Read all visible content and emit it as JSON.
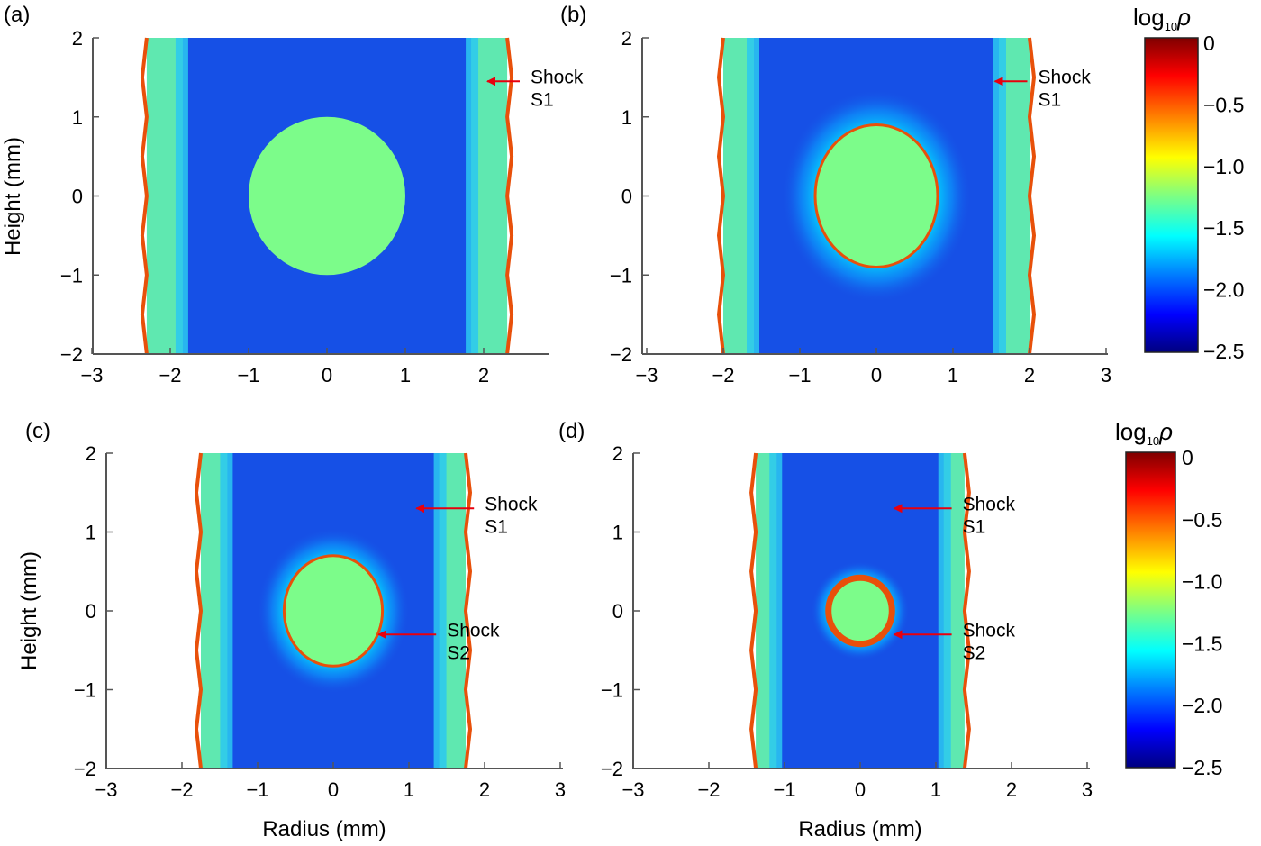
{
  "chart_data": [
    {
      "type": "heatmap",
      "panel_label": "(a)",
      "xlabel": "",
      "ylabel": "Height (mm)",
      "xlim": [
        -3,
        3
      ],
      "ylim": [
        -2,
        2
      ],
      "xticks": [
        "−3",
        "−2",
        "−1",
        "0",
        "1",
        "2"
      ],
      "yticks": [
        "2",
        "1",
        "0",
        "−1",
        "−2"
      ],
      "shock_s1_radius_mm": 2.3,
      "cylinder_radius_mm": 1.0,
      "cylinder_half_height_mm": 1.0,
      "annotations": [
        {
          "line1": "Shock",
          "line2": "S1",
          "target": [
            2.0,
            1.45
          ]
        }
      ]
    },
    {
      "type": "heatmap",
      "panel_label": "(b)",
      "xlabel": "",
      "ylabel": "",
      "xlim": [
        -3,
        3
      ],
      "ylim": [
        -2,
        2
      ],
      "xticks": [
        "−3",
        "−2",
        "−1",
        "0",
        "1",
        "2",
        "3"
      ],
      "yticks": [
        "2",
        "1",
        "0",
        "−1",
        "−2"
      ],
      "shock_s1_radius_mm": 2.0,
      "cylinder_radius_mm": 0.8,
      "cylinder_half_height_mm": 0.9,
      "annotations": [
        {
          "line1": "Shock",
          "line2": "S1",
          "target": [
            1.5,
            1.45
          ]
        }
      ]
    },
    {
      "type": "heatmap",
      "panel_label": "(c)",
      "xlabel": "Radius (mm)",
      "ylabel": "Height (mm)",
      "xlim": [
        -3,
        3
      ],
      "ylim": [
        -2,
        2
      ],
      "xticks": [
        "−3",
        "−2",
        "−1",
        "0",
        "1",
        "2",
        "3"
      ],
      "yticks": [
        "2",
        "1",
        "0",
        "−1",
        "−2"
      ],
      "shock_s1_radius_mm": 1.75,
      "cylinder_radius_mm": 0.65,
      "cylinder_half_height_mm": 0.7,
      "annotations": [
        {
          "line1": "Shock",
          "line2": "S1",
          "target": [
            1.05,
            1.3
          ]
        },
        {
          "line1": "Shock",
          "line2": "S2",
          "target": [
            0.55,
            -0.3
          ]
        }
      ]
    },
    {
      "type": "heatmap",
      "panel_label": "(d)",
      "xlabel": "Radius (mm)",
      "ylabel": "",
      "xlim": [
        -3,
        3
      ],
      "ylim": [
        -2,
        2
      ],
      "xticks": [
        "−3",
        "−2",
        "−1",
        "0",
        "1",
        "2",
        "3"
      ],
      "yticks": [
        "2",
        "1",
        "0",
        "−1",
        "−2"
      ],
      "shock_s1_radius_mm": 1.38,
      "cylinder_radius_mm": 0.42,
      "cylinder_half_height_mm": 0.42,
      "annotations": [
        {
          "line1": "Shock",
          "line2": "S1",
          "target": [
            0.4,
            1.3
          ]
        },
        {
          "line1": "Shock",
          "line2": "S2",
          "target": [
            0.4,
            -0.3
          ]
        }
      ]
    }
  ],
  "colorbar": {
    "label_base": "log",
    "label_sub": "10",
    "label_var": "ρ",
    "range": [
      -2.5,
      0
    ],
    "ticks": [
      "0",
      "−0.5",
      "−1.0",
      "−1.5",
      "−2.0",
      "−2.5"
    ],
    "colormap": [
      "#00007f",
      "#0000ff",
      "#0080ff",
      "#00ffff",
      "#80ff80",
      "#ffff00",
      "#ff8000",
      "#ff0000",
      "#7f0000"
    ]
  },
  "colors": {
    "background_region": "#1650e6",
    "shocked_region": "#5fe8b0",
    "cylinder": "#7cfc8a",
    "shock_front": "#e8500a",
    "arrow": "#e8000d"
  }
}
